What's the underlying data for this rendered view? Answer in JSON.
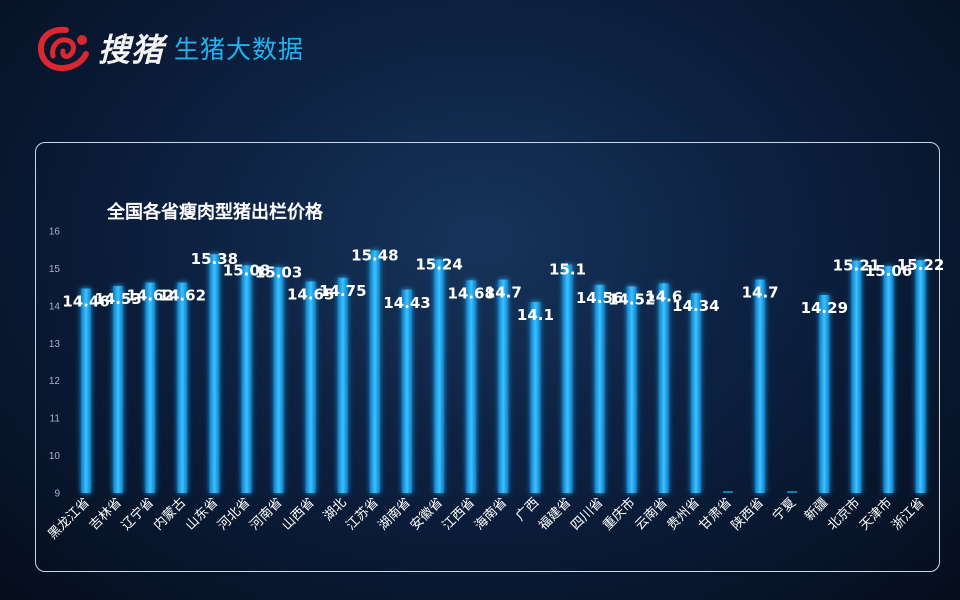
{
  "header": {
    "brand": "搜猪",
    "subtitle": "生猪大数据"
  },
  "colors": {
    "bar": "#1aa6e8",
    "bar_glow": "#0b62a8",
    "label": "#ffffff",
    "axis_text": "#9fb6cf",
    "panel_border": "#c9d6e6"
  },
  "chart_data": {
    "type": "bar",
    "title": "全国各省瘦肉型猪出栏价格",
    "xlabel": "",
    "ylabel": "",
    "ylim": [
      9,
      16
    ],
    "yticks": [
      9,
      10,
      11,
      12,
      13,
      14,
      15,
      16
    ],
    "grid": false,
    "categories": [
      "黑龙江省",
      "吉林省",
      "辽宁省",
      "内蒙古",
      "山东省",
      "河北省",
      "河南省",
      "山西省",
      "湖北",
      "江苏省",
      "湖南省",
      "安徽省",
      "江西省",
      "海南省",
      "广西",
      "福建省",
      "四川省",
      "重庆市",
      "云南省",
      "贵州省",
      "甘肃省",
      "陕西省",
      "宁夏",
      "新疆",
      "北京市",
      "天津市",
      "浙江省"
    ],
    "values": [
      14.46,
      14.53,
      14.62,
      14.62,
      15.38,
      15.08,
      15.03,
      14.65,
      14.75,
      15.48,
      14.43,
      15.24,
      14.68,
      14.7,
      14.1,
      15.1,
      14.56,
      14.52,
      14.6,
      14.34,
      null,
      14.7,
      null,
      14.29,
      15.21,
      15.06,
      15.22
    ],
    "labels": [
      "14.46",
      "14.53",
      "14.62",
      "14.62",
      "15.38",
      "15.08",
      "15.03",
      "14.65",
      "14.75",
      "15.48",
      "14.43",
      "15.24",
      "14.68",
      "14.7",
      "14.1",
      "15.1",
      "14.56",
      "14.52",
      "14.6",
      "14.34",
      "",
      "14.7",
      "",
      "14.29",
      "15.21",
      "15.06",
      "15.22"
    ]
  }
}
